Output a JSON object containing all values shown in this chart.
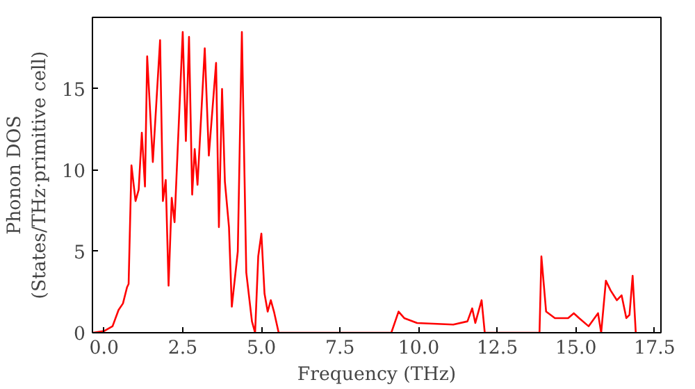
{
  "chart_data": {
    "type": "line",
    "xlabel": "Frequency (THz)",
    "ylabel": "Phonon DOS\n(States/THz·primitive cell)",
    "xlim": [
      -0.37,
      17.7
    ],
    "ylim": [
      0,
      19.4
    ],
    "xticks": [
      {
        "value": 0,
        "label": "0.0"
      },
      {
        "value": 2.5,
        "label": "2.5"
      },
      {
        "value": 5,
        "label": "5.0"
      },
      {
        "value": 7.5,
        "label": "7.5"
      },
      {
        "value": 10,
        "label": "10.0"
      },
      {
        "value": 12.5,
        "label": "12.5"
      },
      {
        "value": 15,
        "label": "15.0"
      },
      {
        "value": 17.5,
        "label": "17.5"
      }
    ],
    "yticks": [
      0,
      5,
      10,
      15
    ],
    "grid": false,
    "marker": "none",
    "line_style": "solid",
    "series": [
      {
        "color": "#ff0000",
        "x": [
          -0.35,
          0,
          0.27,
          0.46,
          0.6,
          0.73,
          0.78,
          0.87,
          1.0,
          1.1,
          1.2,
          1.3,
          1.37,
          1.55,
          1.78,
          1.87,
          1.96,
          2.05,
          2.15,
          2.24,
          2.5,
          2.6,
          2.7,
          2.8,
          2.88,
          2.97,
          3.2,
          3.33,
          3.56,
          3.65,
          3.75,
          3.84,
          3.97,
          4.06,
          4.25,
          4.38,
          4.52,
          4.7,
          4.8,
          4.9,
          5.0,
          5.1,
          5.2,
          5.3,
          5.4,
          5.55,
          9.13,
          9.36,
          9.54,
          9.95,
          11.1,
          11.55,
          11.7,
          11.8,
          12.0,
          12.1,
          13.84,
          13.9,
          14.05,
          14.33,
          14.75,
          14.93,
          15.1,
          15.4,
          15.7,
          15.8,
          15.95,
          16.1,
          16.3,
          16.45,
          16.6,
          16.7,
          16.8,
          16.9
        ],
        "values": [
          0,
          0.1,
          0.4,
          1.4,
          1.8,
          2.8,
          3.0,
          10.3,
          8.1,
          8.8,
          12.3,
          9,
          17,
          10.5,
          18,
          8.1,
          9.4,
          2.9,
          8.3,
          6.8,
          18.5,
          11.8,
          18.2,
          8.5,
          11.3,
          9.1,
          17.5,
          10.9,
          16.6,
          6.5,
          15,
          9.3,
          6.5,
          1.6,
          5,
          18.5,
          3.7,
          0.7,
          0,
          4.7,
          6.1,
          2.4,
          1.3,
          2,
          1.3,
          0,
          0,
          1.3,
          0.9,
          0.6,
          0.5,
          0.7,
          1.5,
          0.6,
          2.0,
          0,
          0,
          4.7,
          1.3,
          0.9,
          0.9,
          1.2,
          0.9,
          0.4,
          1.2,
          0,
          3.2,
          2.6,
          2.0,
          2.3,
          0.9,
          1.1,
          3.5,
          0
        ]
      }
    ]
  }
}
